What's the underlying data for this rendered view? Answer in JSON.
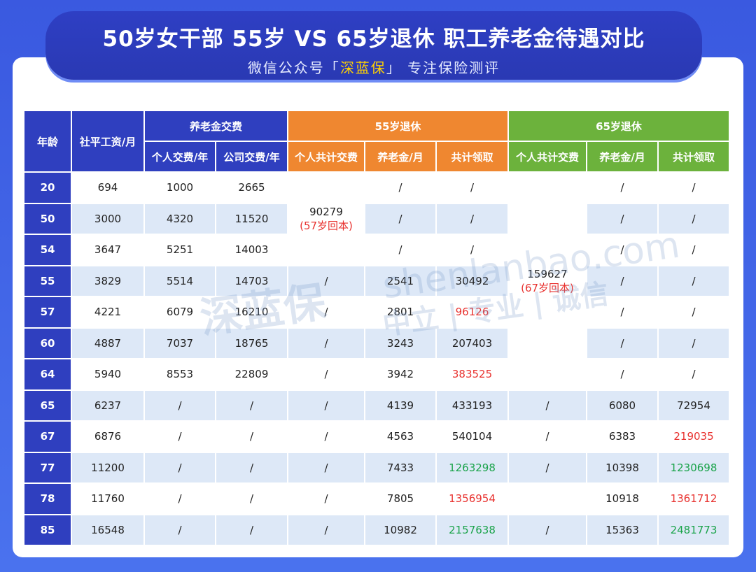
{
  "header": {
    "title": "50岁女干部 55岁 VS 65岁退休 职工养老金待遇对比",
    "subtitle_pre": "微信公众号「",
    "subtitle_brand": "深蓝保",
    "subtitle_post": "」 专注保险测评"
  },
  "watermark": {
    "logo": "深蓝保",
    "site": "shenlanbao.com",
    "slogan": "中立 | 专业 | 诚信"
  },
  "table": {
    "age": "年龄",
    "wage": "社平工资/月",
    "groups": [
      "养老金交费",
      "55岁退休",
      "65岁退休"
    ],
    "columns": [
      "个人交费/年",
      "公司交费/年",
      "个人共计交费",
      "养老金/月",
      "共计领取",
      "个人共计交费",
      "养老金/月",
      "共计领取"
    ],
    "rows": [
      [
        "20",
        "694",
        "1000",
        "2665",
        {
          "text": "90279",
          "note": "(57岁回本)"
        },
        "/",
        "/",
        {
          "text": "159627",
          "note": "(67岁回本)"
        },
        "/",
        "/"
      ],
      [
        "50",
        "3000",
        "4320",
        "11520",
        null,
        "/",
        "/",
        null,
        "/",
        "/"
      ],
      [
        "54",
        "3647",
        "5251",
        "14003",
        null,
        "/",
        "/",
        null,
        "/",
        "/"
      ],
      [
        "55",
        "3829",
        "5514",
        "14703",
        "/",
        "2541",
        "30492",
        null,
        "/",
        "/"
      ],
      [
        "57",
        "4221",
        "6079",
        "16210",
        "/",
        "2801",
        {
          "text": "96126",
          "color": "#e8322f"
        },
        null,
        "/",
        "/"
      ],
      [
        "60",
        "4887",
        "7037",
        "18765",
        "/",
        "3243",
        "207403",
        null,
        "/",
        "/"
      ],
      [
        "64",
        "5940",
        "8553",
        "22809",
        "/",
        "3942",
        {
          "text": "383525",
          "color": "#e8322f"
        },
        null,
        "/",
        "/"
      ],
      [
        "65",
        "6237",
        "/",
        "/",
        "/",
        "4139",
        "433193",
        "/",
        "6080",
        "72954"
      ],
      [
        "67",
        "6876",
        "/",
        "/",
        "/",
        "4563",
        "540104",
        "/",
        "6383",
        {
          "text": "219035",
          "color": "#e8322f"
        }
      ],
      [
        "77",
        "11200",
        "/",
        "/",
        "/",
        "7433",
        {
          "text": "1263298",
          "color": "#1aa34a"
        },
        "/",
        "10398",
        {
          "text": "1230698",
          "color": "#1aa34a"
        }
      ],
      [
        "78",
        "11760",
        "/",
        "/",
        "/",
        "7805",
        {
          "text": "1356954",
          "color": "#e8322f"
        },
        null,
        "10918",
        {
          "text": "1361712",
          "color": "#e8322f"
        }
      ],
      [
        "85",
        "16548",
        "/",
        "/",
        "/",
        "10982",
        {
          "text": "2157638",
          "color": "#1aa34a"
        },
        "/",
        "15363",
        {
          "text": "2481773",
          "color": "#1aa34a"
        }
      ]
    ]
  }
}
